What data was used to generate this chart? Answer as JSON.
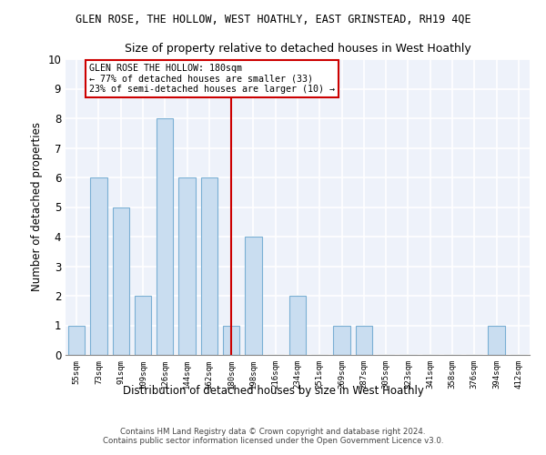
{
  "title_line1": "GLEN ROSE, THE HOLLOW, WEST HOATHLY, EAST GRINSTEAD, RH19 4QE",
  "title_line2": "Size of property relative to detached houses in West Hoathly",
  "xlabel": "Distribution of detached houses by size in West Hoathly",
  "ylabel": "Number of detached properties",
  "footer_line1": "Contains HM Land Registry data © Crown copyright and database right 2024.",
  "footer_line2": "Contains public sector information licensed under the Open Government Licence v3.0.",
  "bin_labels": [
    "55sqm",
    "73sqm",
    "91sqm",
    "109sqm",
    "126sqm",
    "144sqm",
    "162sqm",
    "180sqm",
    "198sqm",
    "216sqm",
    "234sqm",
    "251sqm",
    "269sqm",
    "287sqm",
    "305sqm",
    "323sqm",
    "341sqm",
    "358sqm",
    "376sqm",
    "394sqm",
    "412sqm"
  ],
  "values": [
    1,
    6,
    5,
    2,
    8,
    6,
    6,
    1,
    4,
    0,
    2,
    0,
    1,
    1,
    0,
    0,
    0,
    0,
    0,
    1,
    0
  ],
  "bar_color": "#c9ddf0",
  "bar_edge_color": "#7aafd4",
  "bar_width": 0.75,
  "highlight_bin_index": 7,
  "highlight_line_color": "#cc0000",
  "annotation_text_line1": "GLEN ROSE THE HOLLOW: 180sqm",
  "annotation_text_line2": "← 77% of detached houses are smaller (33)",
  "annotation_text_line3": "23% of semi-detached houses are larger (10) →",
  "annotation_box_color": "#cc0000",
  "ylim": [
    0,
    10
  ],
  "yticks": [
    0,
    1,
    2,
    3,
    4,
    5,
    6,
    7,
    8,
    9,
    10
  ],
  "background_color": "#eef2fa",
  "grid_color": "#ffffff",
  "fig_bg": "#ffffff"
}
